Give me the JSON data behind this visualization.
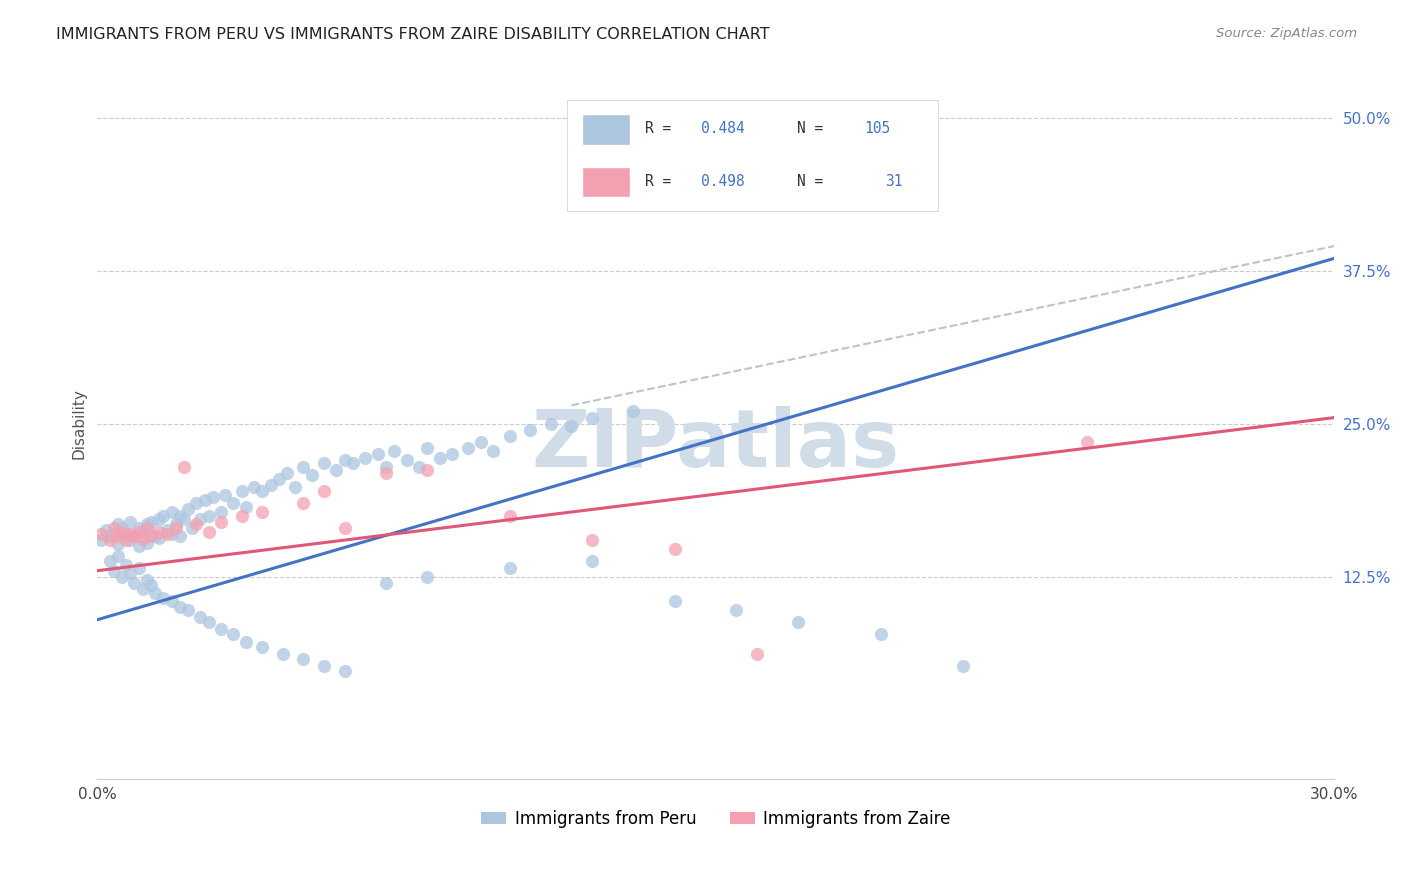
{
  "title": "IMMIGRANTS FROM PERU VS IMMIGRANTS FROM ZAIRE DISABILITY CORRELATION CHART",
  "source": "Source: ZipAtlas.com",
  "ylabel": "Disability",
  "ytick_labels": [
    "12.5%",
    "25.0%",
    "37.5%",
    "50.0%"
  ],
  "ytick_values": [
    0.125,
    0.25,
    0.375,
    0.5
  ],
  "xlim": [
    0.0,
    0.3
  ],
  "ylim": [
    -0.04,
    0.54
  ],
  "legend_r_peru": "R = ",
  "legend_r_peru_val": "0.484",
  "legend_n_peru": "N = ",
  "legend_n_peru_val": "105",
  "legend_r_zaire": "R = ",
  "legend_r_zaire_val": "0.498",
  "legend_n_zaire": "N =  ",
  "legend_n_zaire_val": "31",
  "peru_color": "#adc6e0",
  "zaire_color": "#f4a0b0",
  "peru_line_color": "#4472c4",
  "zaire_line_color": "#e05878",
  "dashed_line_color": "#b8c4d0",
  "watermark_text": "ZIPatlas",
  "watermark_color": "#d0dce8",
  "peru_scatter_x": [
    0.001,
    0.002,
    0.003,
    0.004,
    0.005,
    0.005,
    0.006,
    0.007,
    0.008,
    0.008,
    0.009,
    0.01,
    0.01,
    0.011,
    0.012,
    0.012,
    0.013,
    0.014,
    0.015,
    0.015,
    0.016,
    0.017,
    0.018,
    0.018,
    0.019,
    0.02,
    0.02,
    0.021,
    0.022,
    0.023,
    0.024,
    0.025,
    0.026,
    0.027,
    0.028,
    0.03,
    0.031,
    0.033,
    0.035,
    0.036,
    0.038,
    0.04,
    0.042,
    0.044,
    0.046,
    0.048,
    0.05,
    0.052,
    0.055,
    0.058,
    0.06,
    0.062,
    0.065,
    0.068,
    0.07,
    0.072,
    0.075,
    0.078,
    0.08,
    0.083,
    0.086,
    0.09,
    0.093,
    0.096,
    0.1,
    0.105,
    0.11,
    0.115,
    0.12,
    0.13,
    0.003,
    0.004,
    0.005,
    0.006,
    0.007,
    0.008,
    0.009,
    0.01,
    0.011,
    0.012,
    0.013,
    0.014,
    0.016,
    0.018,
    0.02,
    0.022,
    0.025,
    0.027,
    0.03,
    0.033,
    0.036,
    0.04,
    0.045,
    0.05,
    0.055,
    0.06,
    0.07,
    0.08,
    0.1,
    0.12,
    0.14,
    0.155,
    0.17,
    0.19,
    0.21
  ],
  "peru_scatter_y": [
    0.155,
    0.163,
    0.158,
    0.16,
    0.168,
    0.152,
    0.165,
    0.16,
    0.17,
    0.155,
    0.158,
    0.165,
    0.15,
    0.162,
    0.168,
    0.153,
    0.17,
    0.158,
    0.172,
    0.157,
    0.175,
    0.163,
    0.178,
    0.16,
    0.168,
    0.175,
    0.158,
    0.172,
    0.18,
    0.165,
    0.185,
    0.172,
    0.188,
    0.175,
    0.19,
    0.178,
    0.192,
    0.185,
    0.195,
    0.182,
    0.198,
    0.195,
    0.2,
    0.205,
    0.21,
    0.198,
    0.215,
    0.208,
    0.218,
    0.212,
    0.22,
    0.218,
    0.222,
    0.225,
    0.215,
    0.228,
    0.22,
    0.215,
    0.23,
    0.222,
    0.225,
    0.23,
    0.235,
    0.228,
    0.24,
    0.245,
    0.25,
    0.248,
    0.255,
    0.26,
    0.138,
    0.13,
    0.142,
    0.125,
    0.135,
    0.128,
    0.12,
    0.132,
    0.115,
    0.122,
    0.118,
    0.112,
    0.108,
    0.105,
    0.1,
    0.098,
    0.092,
    0.088,
    0.082,
    0.078,
    0.072,
    0.068,
    0.062,
    0.058,
    0.052,
    0.048,
    0.12,
    0.125,
    0.132,
    0.138,
    0.105,
    0.098,
    0.088,
    0.078,
    0.052
  ],
  "zaire_scatter_x": [
    0.001,
    0.003,
    0.004,
    0.005,
    0.006,
    0.007,
    0.008,
    0.009,
    0.01,
    0.011,
    0.012,
    0.013,
    0.015,
    0.017,
    0.019,
    0.021,
    0.024,
    0.027,
    0.03,
    0.035,
    0.04,
    0.05,
    0.06,
    0.07,
    0.08,
    0.1,
    0.12,
    0.14,
    0.16,
    0.24,
    0.055
  ],
  "zaire_scatter_y": [
    0.16,
    0.155,
    0.165,
    0.158,
    0.162,
    0.155,
    0.16,
    0.158,
    0.162,
    0.156,
    0.165,
    0.158,
    0.162,
    0.16,
    0.165,
    0.215,
    0.168,
    0.162,
    0.17,
    0.175,
    0.178,
    0.185,
    0.165,
    0.21,
    0.212,
    0.175,
    0.155,
    0.148,
    0.062,
    0.235,
    0.195
  ],
  "peru_line_x": [
    0.0,
    0.3
  ],
  "peru_line_y": [
    0.09,
    0.385
  ],
  "zaire_line_x": [
    0.0,
    0.3
  ],
  "zaire_line_y": [
    0.13,
    0.255
  ],
  "dashed_line_x": [
    0.115,
    0.3
  ],
  "dashed_line_y": [
    0.265,
    0.395
  ]
}
